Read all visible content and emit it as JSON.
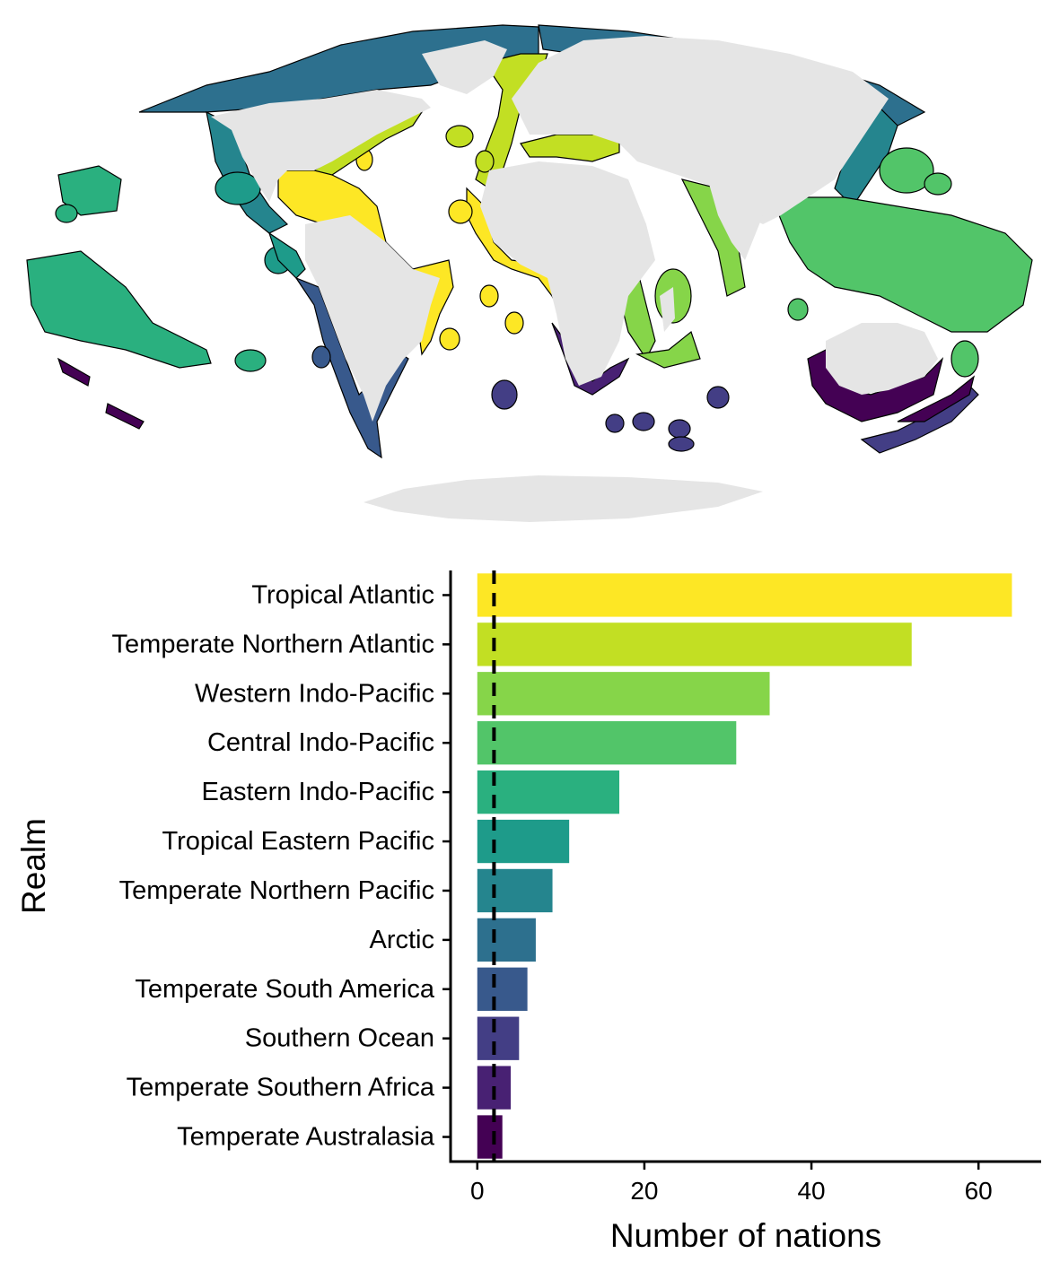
{
  "chart_data": {
    "type": "bar",
    "orientation": "horizontal",
    "categories": [
      "Tropical Atlantic",
      "Temperate Northern Atlantic",
      "Western Indo-Pacific",
      "Central Indo-Pacific",
      "Eastern Indo-Pacific",
      "Tropical Eastern Pacific",
      "Temperate Northern Pacific",
      "Arctic",
      "Temperate South America",
      "Southern Ocean",
      "Temperate Southern Africa",
      "Temperate Australasia"
    ],
    "values": [
      64,
      52,
      35,
      31,
      17,
      11,
      9,
      7,
      6,
      5,
      4,
      3
    ],
    "colors": [
      "#FDE725",
      "#C2DF23",
      "#86D549",
      "#52C569",
      "#2AB07F",
      "#1E9B8A",
      "#25858E",
      "#2D708E",
      "#38598C",
      "#433E85",
      "#482173",
      "#440154"
    ],
    "reference_line": {
      "x": 2,
      "style": "dashed",
      "color": "#000000"
    },
    "xlabel": "Number of nations",
    "ylabel": "Realm",
    "xlim": [
      -3.2,
      67.5
    ],
    "xticks": [
      "0",
      "20",
      "40",
      "60"
    ],
    "grid": false
  },
  "map": {
    "projection": "equal-earth",
    "land_color": "#E5E5E5",
    "outline_color": "#000000"
  }
}
